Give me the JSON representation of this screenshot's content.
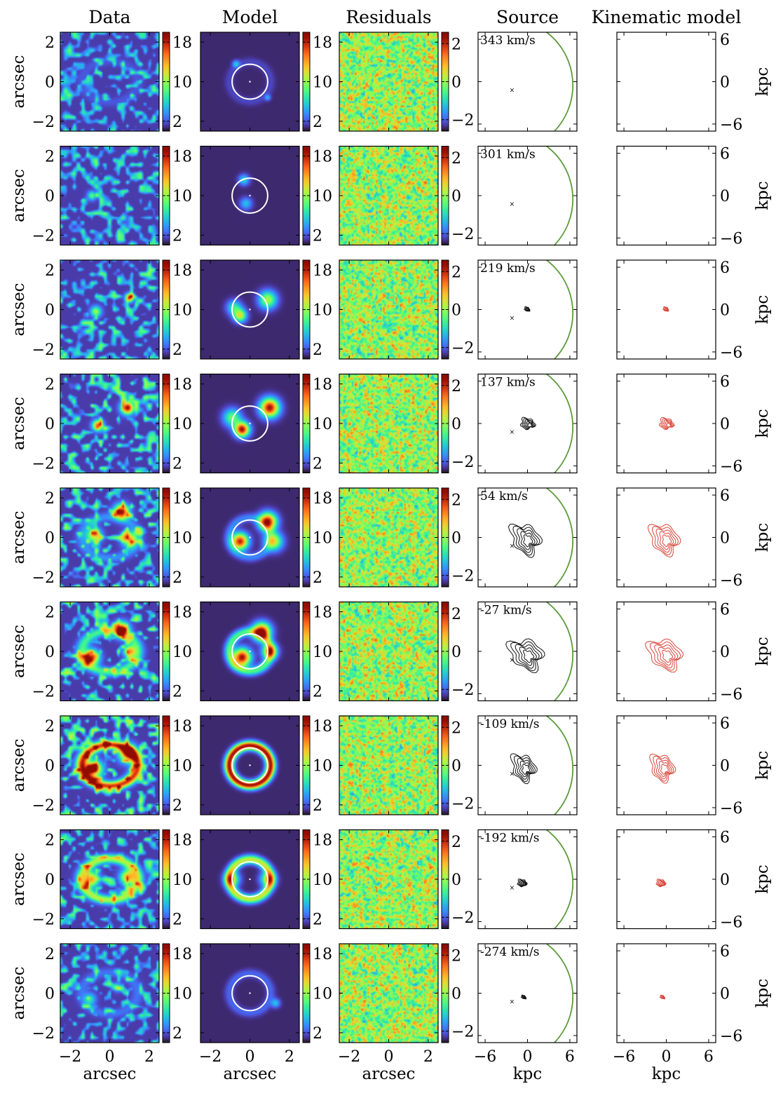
{
  "figure": {
    "column_titles": [
      "Data",
      "Model",
      "Residuals",
      "Source",
      "Kinematic model"
    ],
    "rows": [
      {
        "velocity_label": "343 km/s",
        "velocity": 343,
        "emission": 0.15,
        "ring": 0.05,
        "model_blobs": [
          {
            "u": -0.7,
            "v": 0.9,
            "s": 0.12,
            "a": 0.25
          },
          {
            "u": 0.9,
            "v": -0.8,
            "s": 0.1,
            "a": 0.2
          }
        ],
        "data_blobs": [],
        "source": null
      },
      {
        "velocity_label": "301 km/s",
        "velocity": 301,
        "emission": 0.2,
        "ring": 0.0,
        "model_blobs": [
          {
            "u": -0.3,
            "v": 0.8,
            "s": 0.18,
            "a": 0.3
          },
          {
            "u": -0.2,
            "v": -0.4,
            "s": 0.2,
            "a": 0.25
          }
        ],
        "data_blobs": [
          {
            "u": -0.9,
            "v": 0.0,
            "s": 0.15,
            "a": 0.4
          }
        ],
        "source": null
      },
      {
        "velocity_label": "219 km/s",
        "velocity": 219,
        "emission": 0.35,
        "ring": 0.0,
        "model_blobs": [
          {
            "u": 0.9,
            "v": 0.5,
            "s": 0.3,
            "a": 0.55
          },
          {
            "u": -0.5,
            "v": -0.3,
            "s": 0.22,
            "a": 0.6
          },
          {
            "u": -0.8,
            "v": 0.1,
            "s": 0.25,
            "a": 0.35
          }
        ],
        "data_blobs": [
          {
            "u": 1.0,
            "v": 0.6,
            "s": 0.14,
            "a": 0.9
          },
          {
            "u": -0.7,
            "v": -0.1,
            "s": 0.18,
            "a": 0.5
          }
        ],
        "source": {
          "cu": -0.1,
          "cv": 0.1,
          "size": 0.25,
          "tilt": 0.2
        }
      },
      {
        "velocity_label": "137 km/s",
        "velocity": 137,
        "emission": 0.6,
        "ring": 0.0,
        "model_blobs": [
          {
            "u": 1.0,
            "v": 0.8,
            "s": 0.32,
            "a": 1.0
          },
          {
            "u": -0.4,
            "v": -0.3,
            "s": 0.25,
            "a": 1.0
          },
          {
            "u": -0.9,
            "v": 0.3,
            "s": 0.3,
            "a": 0.45
          }
        ],
        "data_blobs": [
          {
            "u": 0.9,
            "v": 0.8,
            "s": 0.22,
            "a": 1.0
          },
          {
            "u": -0.6,
            "v": -0.1,
            "s": 0.18,
            "a": 0.85
          }
        ],
        "source": {
          "cu": 0.0,
          "cv": 0.0,
          "size": 0.7,
          "tilt": 0.1
        }
      },
      {
        "velocity_label": "54 km/s",
        "velocity": 54,
        "emission": 0.7,
        "ring": 0.15,
        "model_blobs": [
          {
            "u": 0.9,
            "v": 0.8,
            "s": 0.3,
            "a": 1.0
          },
          {
            "u": -0.5,
            "v": -0.2,
            "s": 0.28,
            "a": 0.95
          },
          {
            "u": 1.2,
            "v": -0.2,
            "s": 0.3,
            "a": 0.6
          }
        ],
        "data_blobs": [
          {
            "u": 0.6,
            "v": 1.3,
            "s": 0.25,
            "a": 1.0
          },
          {
            "u": 1.0,
            "v": -0.1,
            "s": 0.25,
            "a": 0.7
          },
          {
            "u": -0.8,
            "v": 0.1,
            "s": 0.25,
            "a": 0.6
          }
        ],
        "source": {
          "cu": -0.3,
          "cv": -0.2,
          "size": 1.3,
          "tilt": -0.7
        }
      },
      {
        "velocity_label": "-27 km/s",
        "velocity": -27,
        "emission": 0.8,
        "ring": 0.4,
        "model_blobs": [
          {
            "u": 0.6,
            "v": 1.0,
            "s": 0.3,
            "a": 1.0
          },
          {
            "u": -0.4,
            "v": -0.3,
            "s": 0.3,
            "a": 1.0
          },
          {
            "u": 1.0,
            "v": 0.0,
            "s": 0.25,
            "a": 0.7
          }
        ],
        "data_blobs": [
          {
            "u": 0.6,
            "v": 1.1,
            "s": 0.25,
            "a": 1.0
          },
          {
            "u": -0.9,
            "v": -0.3,
            "s": 0.25,
            "a": 0.9
          },
          {
            "u": 1.0,
            "v": 0.0,
            "s": 0.2,
            "a": 0.7
          }
        ],
        "source": {
          "cu": -0.2,
          "cv": -0.4,
          "size": 1.4,
          "tilt": -1.0
        }
      },
      {
        "velocity_label": "-109 km/s",
        "velocity": -109,
        "emission": 1.0,
        "ring": 1.0,
        "model_blobs": [],
        "data_blobs": [
          {
            "u": -0.8,
            "v": -0.2,
            "s": 0.3,
            "a": 0.8
          },
          {
            "u": 0.9,
            "v": 0.6,
            "s": 0.3,
            "a": 0.8
          }
        ],
        "source": {
          "cu": -0.6,
          "cv": -0.3,
          "size": 1.1,
          "tilt": -0.5
        }
      },
      {
        "velocity_label": "-192 km/s",
        "velocity": -192,
        "emission": 0.5,
        "ring": 0.6,
        "model_blobs": [
          {
            "u": -0.9,
            "v": 0.0,
            "s": 0.25,
            "a": 0.5
          },
          {
            "u": 0.9,
            "v": 0.0,
            "s": 0.25,
            "a": 0.5
          }
        ],
        "data_blobs": [
          {
            "u": -0.9,
            "v": 0.0,
            "s": 0.25,
            "a": 0.7
          },
          {
            "u": 0.9,
            "v": 0.1,
            "s": 0.25,
            "a": 0.7
          }
        ],
        "source": {
          "cu": -0.8,
          "cv": -0.5,
          "size": 0.45,
          "tilt": 0.0
        }
      },
      {
        "velocity_label": "-274 km/s",
        "velocity": -274,
        "emission": 0.15,
        "ring": 0.1,
        "model_blobs": [
          {
            "u": 1.3,
            "v": -0.5,
            "s": 0.15,
            "a": 0.25
          }
        ],
        "data_blobs": [
          {
            "u": -1.0,
            "v": -0.3,
            "s": 0.2,
            "a": 0.3
          },
          {
            "u": 0.4,
            "v": 0.3,
            "s": 0.15,
            "a": 0.3
          }
        ],
        "source": {
          "cu": -0.6,
          "cv": -0.5,
          "size": 0.2,
          "tilt": 0.0
        }
      }
    ],
    "arcsec_axis": {
      "label": "arcsec",
      "ticks": [
        -2,
        0,
        2
      ],
      "tick_labels": [
        "−2",
        "0",
        "2"
      ],
      "range": [
        -2.5,
        2.5
      ]
    },
    "kpc_axis": {
      "label": "kpc",
      "ticks": [
        -6,
        0,
        6
      ],
      "tick_labels": [
        "−6",
        "0",
        "6"
      ],
      "range": [
        -7,
        7
      ]
    },
    "data_colorbar": {
      "ticks": [
        2,
        10,
        18
      ],
      "tick_labels": [
        "2",
        "10",
        "18"
      ],
      "range": [
        0,
        20
      ],
      "colormap": "turbo"
    },
    "residual_colorbar": {
      "ticks": [
        -2,
        0,
        2
      ],
      "tick_labels": [
        "−2",
        "0",
        "2"
      ],
      "range": [
        -2.6,
        2.6
      ],
      "colormap": "turbo"
    },
    "colors": {
      "background_dark": "#30123b",
      "critical_curve": "#ffffff",
      "caustic": "#5a9a3a",
      "source_contours": "#111111",
      "kinematic_contours": "#d9463b",
      "source_center": "#5a9a3a"
    }
  }
}
